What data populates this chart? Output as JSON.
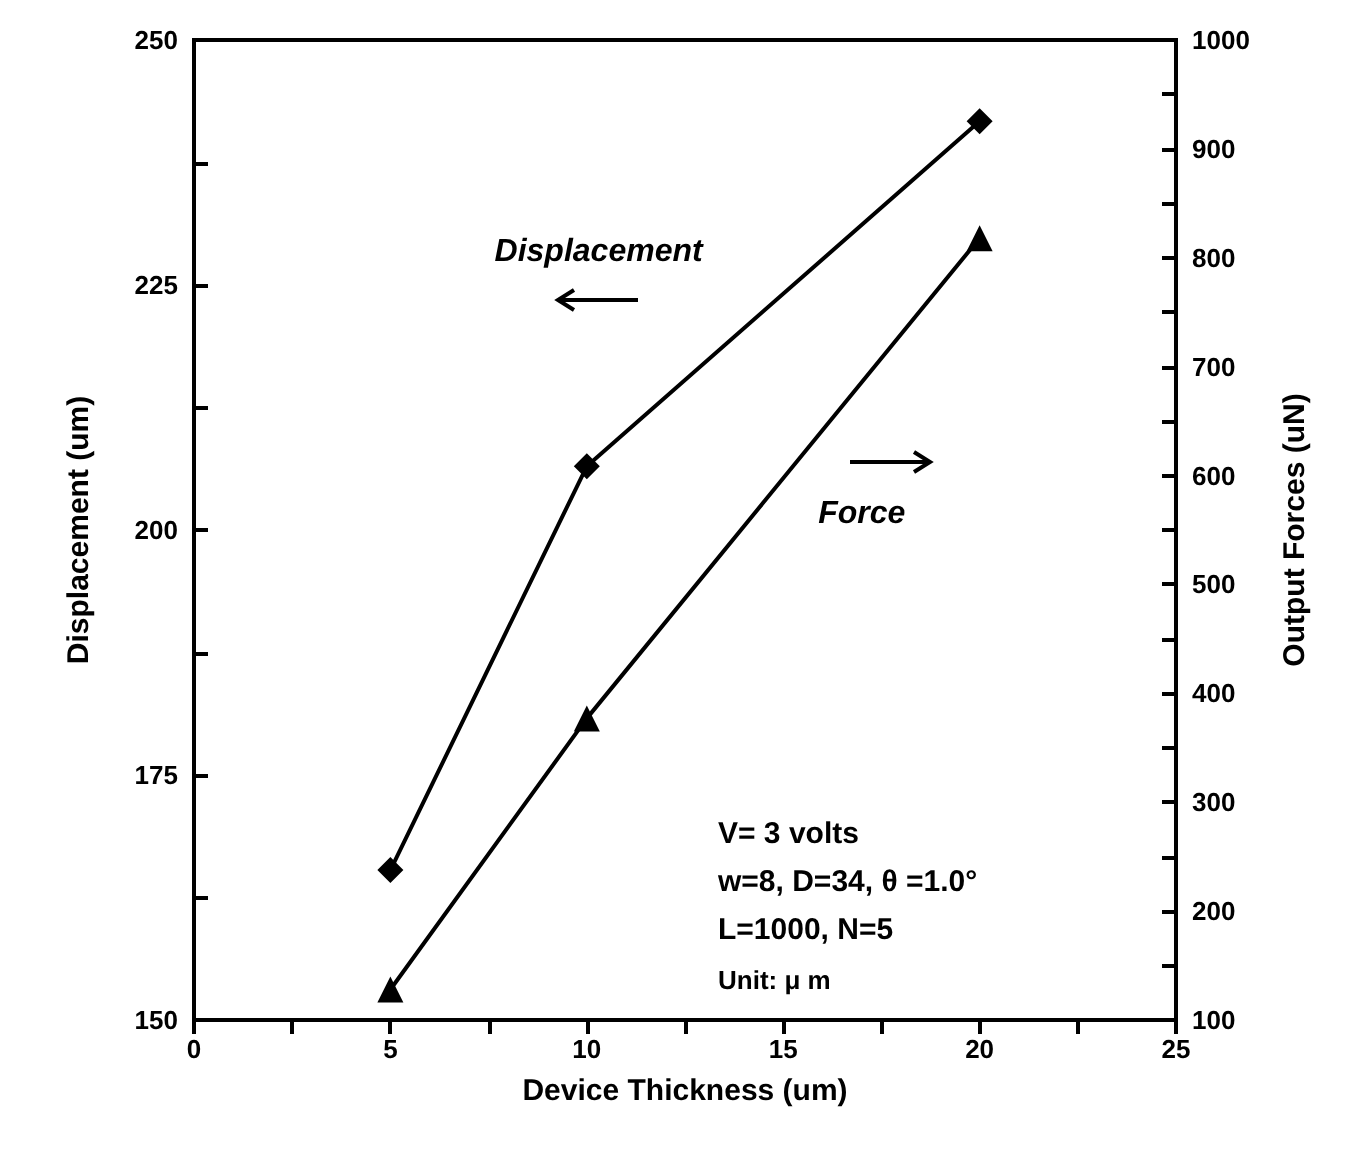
{
  "chart_data": {
    "type": "line",
    "xlabel": "Device Thickness (um)",
    "ylabel": "Displacement (um)",
    "y2label": "Output Forces (uN)",
    "x": [
      5,
      10,
      20
    ],
    "series": [
      {
        "color": "#000000",
        "marker": "diamond",
        "values": [
          165.3,
          206.5,
          241.7
        ]
      },
      {
        "color": "#000000",
        "marker": "triangle",
        "axis": "y2",
        "values": [
          128,
          377,
          818
        ]
      }
    ],
    "xlim": [
      0,
      25
    ],
    "xticks": [
      0,
      {
        "value": 2.5,
        "label": null
      },
      5,
      {
        "value": 7.5,
        "label": null
      },
      10,
      {
        "value": 12.5,
        "label": null
      },
      15,
      {
        "value": 17.5,
        "label": null
      },
      20,
      {
        "value": 22.5,
        "label": null
      },
      25
    ],
    "ylim": [
      150,
      250
    ],
    "yticks": [
      150,
      {
        "value": 162.5,
        "label": null
      },
      175,
      {
        "value": 187.5,
        "label": null
      },
      200,
      {
        "value": 212.5,
        "label": null
      },
      225,
      {
        "value": 237.5,
        "label": null
      },
      250
    ],
    "y2lim": [
      100,
      1000
    ],
    "y2ticks": [
      100,
      {
        "value": 150,
        "label": null
      },
      200,
      {
        "value": 250,
        "label": null
      },
      300,
      {
        "value": 350,
        "label": null
      },
      400,
      {
        "value": 450,
        "label": null
      },
      500,
      {
        "value": 550,
        "label": null
      },
      600,
      {
        "value": 650,
        "label": null
      },
      700,
      {
        "value": 750,
        "label": null
      },
      800,
      {
        "value": 850,
        "label": null
      },
      900,
      {
        "value": 950,
        "label": null
      },
      1000
    ],
    "annotations": [
      "Displacement",
      "Force",
      "V= 3 volts",
      "w=8, D=34, θ =1.0°",
      "L=1000, N=5",
      "Unit: μ m"
    ],
    "grid": false,
    "line_style": "solid"
  }
}
